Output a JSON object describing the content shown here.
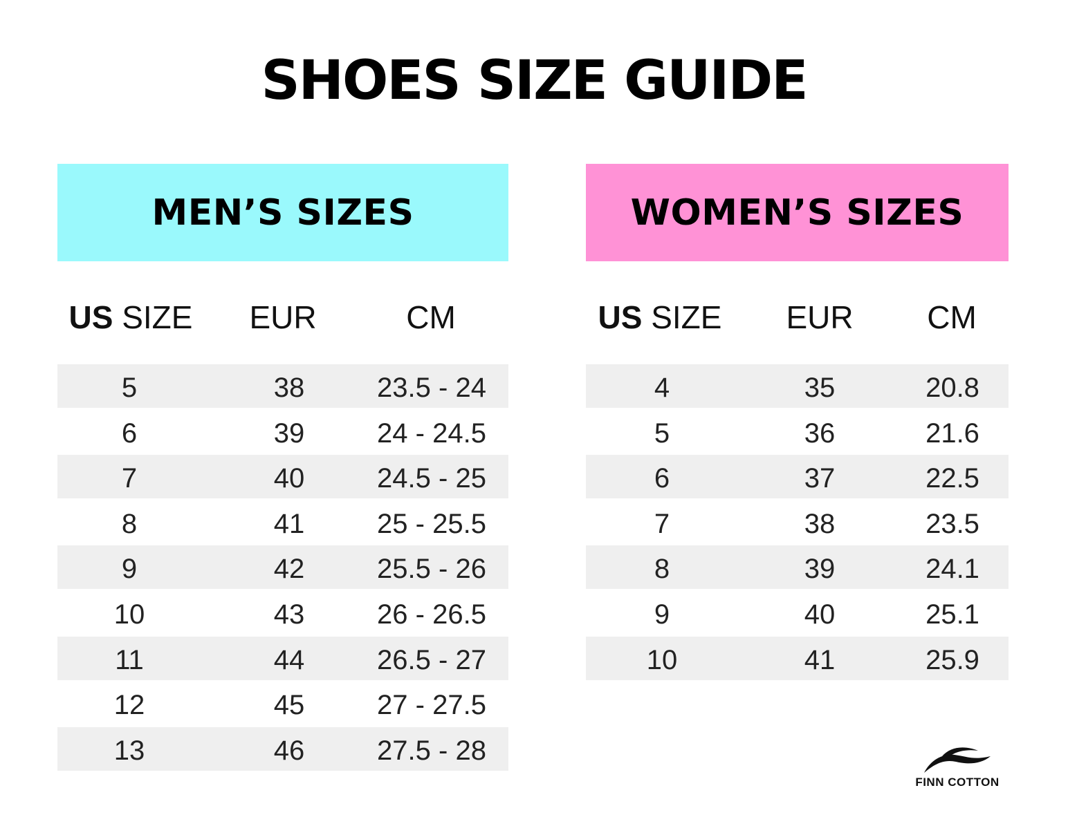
{
  "title": "SHOES SIZE GUIDE",
  "colors": {
    "men_banner": "#9af9fc",
    "women_banner": "#ff92d6",
    "row_shade": "#efefef"
  },
  "men": {
    "heading": "MEN’S SIZES",
    "columns": {
      "us_bold": "US",
      "us_rest": " SIZE",
      "eur": "EUR",
      "cm": "CM"
    },
    "rows": [
      {
        "us": "5",
        "eur": "38",
        "cm": "23.5 - 24"
      },
      {
        "us": "6",
        "eur": "39",
        "cm": "24 - 24.5"
      },
      {
        "us": "7",
        "eur": "40",
        "cm": "24.5 - 25"
      },
      {
        "us": "8",
        "eur": "41",
        "cm": "25 - 25.5"
      },
      {
        "us": "9",
        "eur": "42",
        "cm": "25.5 - 26"
      },
      {
        "us": "10",
        "eur": "43",
        "cm": "26 - 26.5"
      },
      {
        "us": "11",
        "eur": "44",
        "cm": "26.5 - 27"
      },
      {
        "us": "12",
        "eur": "45",
        "cm": "27 - 27.5"
      },
      {
        "us": "13",
        "eur": "46",
        "cm": "27.5 - 28"
      }
    ]
  },
  "women": {
    "heading": "WOMEN’S SIZES",
    "columns": {
      "us_bold": "US",
      "us_rest": " SIZE",
      "eur": "EUR",
      "cm": "CM"
    },
    "rows": [
      {
        "us": "4",
        "eur": "35",
        "cm": "20.8"
      },
      {
        "us": "5",
        "eur": "36",
        "cm": "21.6"
      },
      {
        "us": "6",
        "eur": "37",
        "cm": "22.5"
      },
      {
        "us": "7",
        "eur": "38",
        "cm": "23.5"
      },
      {
        "us": "8",
        "eur": "39",
        "cm": "24.1"
      },
      {
        "us": "9",
        "eur": "40",
        "cm": "25.1"
      },
      {
        "us": "10",
        "eur": "41",
        "cm": "25.9"
      }
    ]
  },
  "brand": {
    "name": "FINN COTTON",
    "icon": "wave-logo-icon"
  }
}
